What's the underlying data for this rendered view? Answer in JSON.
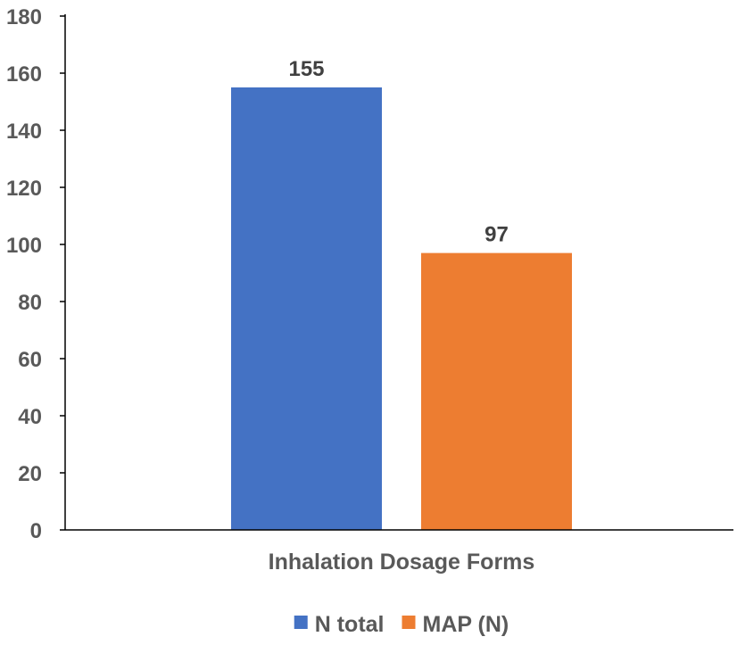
{
  "chart_data": {
    "type": "bar",
    "categories": [
      "Inhalation Dosage Forms"
    ],
    "series": [
      {
        "name": "N total",
        "values": [
          155
        ],
        "color": "#4472C4"
      },
      {
        "name": "MAP (N)",
        "values": [
          97
        ],
        "color": "#ED7D31"
      }
    ],
    "ylim": [
      0,
      180
    ],
    "yticks": [
      0,
      20,
      40,
      60,
      80,
      100,
      120,
      140,
      160,
      180
    ],
    "data_labels": [
      "155",
      "97"
    ],
    "grid": false,
    "legend_position": "bottom",
    "title": "",
    "xlabel": "",
    "ylabel": ""
  }
}
